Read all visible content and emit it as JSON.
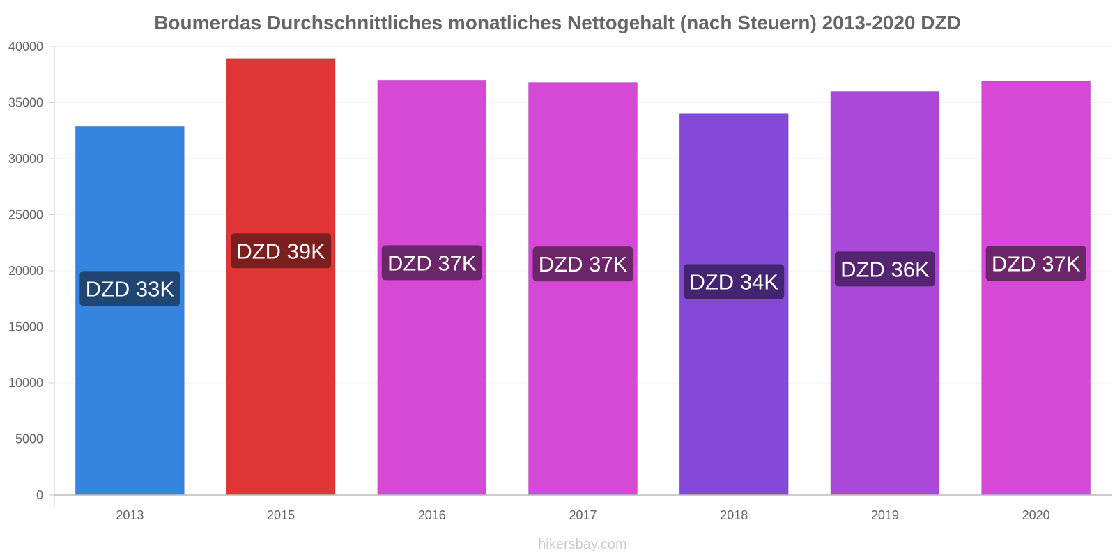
{
  "chart_data": {
    "type": "bar",
    "title": "Boumerdas Durchschnittliches monatliches Nettogehalt (nach Steuern) 2013-2020 DZD",
    "xlabel": "",
    "ylabel": "",
    "ylim": [
      0,
      40000
    ],
    "yticks": [
      0,
      5000,
      10000,
      15000,
      20000,
      25000,
      30000,
      35000,
      40000
    ],
    "categories": [
      "2013",
      "2015",
      "2016",
      "2017",
      "2018",
      "2019",
      "2020"
    ],
    "values": [
      32900,
      38900,
      37000,
      36800,
      34000,
      36000,
      36900
    ],
    "labels": [
      "DZD 33K",
      "DZD 39K",
      "DZD 37K",
      "DZD 37K",
      "DZD 34K",
      "DZD 36K",
      "DZD 37K"
    ],
    "bar_colors": [
      "#3584e0",
      "#e23535",
      "#d649d6",
      "#d649d6",
      "#8449d9",
      "#aa49d9",
      "#d649d6"
    ],
    "label_colors": [
      "#1f4570",
      "#7a1e1e",
      "#6b2569",
      "#6b2569",
      "#422471",
      "#552471",
      "#6b2569"
    ],
    "grid": true
  },
  "watermark": "hikersbay.com"
}
